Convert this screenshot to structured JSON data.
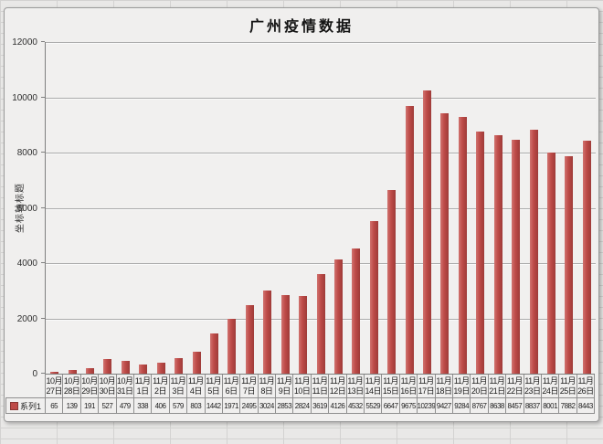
{
  "chart": {
    "title": "广州疫情数据",
    "y_axis_title": "坐标轴标题",
    "legend_label": "系列1",
    "series_color": "#BE4B48"
  },
  "chart_data": {
    "type": "bar",
    "title": "广州疫情数据",
    "xlabel": "",
    "ylabel": "坐标轴标题",
    "series_name": "系列1",
    "categories": [
      "10月27日",
      "10月28日",
      "10月29日",
      "10月30日",
      "10月31日",
      "11月1日",
      "11月2日",
      "11月3日",
      "11月4日",
      "11月5日",
      "11月6日",
      "11月7日",
      "11月8日",
      "11月9日",
      "11月10日",
      "11月11日",
      "11月12日",
      "11月13日",
      "11月14日",
      "11月15日",
      "11月16日",
      "11月17日",
      "11月18日",
      "11月19日",
      "11月20日",
      "11月21日",
      "11月22日",
      "11月23日",
      "11月24日",
      "11月25日",
      "11月26日"
    ],
    "values": [
      65,
      139,
      191,
      527,
      479,
      338,
      406,
      579,
      803,
      1442,
      1971,
      2495,
      3024,
      2853,
      2824,
      3619,
      4126,
      4532,
      5529,
      6647,
      9675,
      10239,
      9427,
      9284,
      8767,
      8638,
      8457,
      8837,
      8001,
      7882,
      8443
    ],
    "ylim": [
      0,
      12000
    ],
    "yticks": [
      0,
      2000,
      4000,
      6000,
      8000,
      10000,
      12000
    ],
    "grid": true,
    "legend_position": "bottom-left-table",
    "bar_color": "#BE4B48",
    "data_table_shown": true
  }
}
